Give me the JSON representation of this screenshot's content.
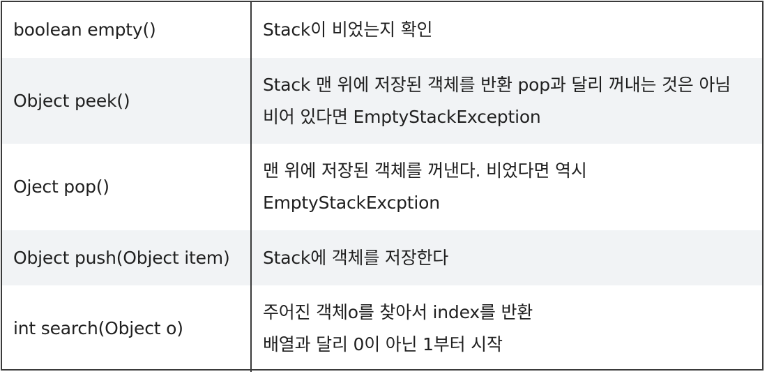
{
  "rows": [
    {
      "method": "boolean empty()",
      "description": [
        "Stack이 비었는지 확인"
      ]
    },
    {
      "method": "Object peek()",
      "description": [
        "Stack 맨 위에 저장된 객체를 반환 pop과 달리 꺼내는 것은 아님",
        "비어 있다면 EmptyStackException"
      ]
    },
    {
      "method": "Oject pop()",
      "description": [
        "맨 위에 저장된 객체를 꺼낸다. 비었다면 역시",
        "EmptyStackExcption"
      ]
    },
    {
      "method": "Object push(Object item)",
      "description": [
        "Stack에 객체를 저장한다"
      ]
    },
    {
      "method": "int search(Object o)",
      "description": [
        "주어진 객체o를 찾아서 index를 반환",
        "배열과 달리 0이 아닌 1부터 시작"
      ]
    }
  ]
}
